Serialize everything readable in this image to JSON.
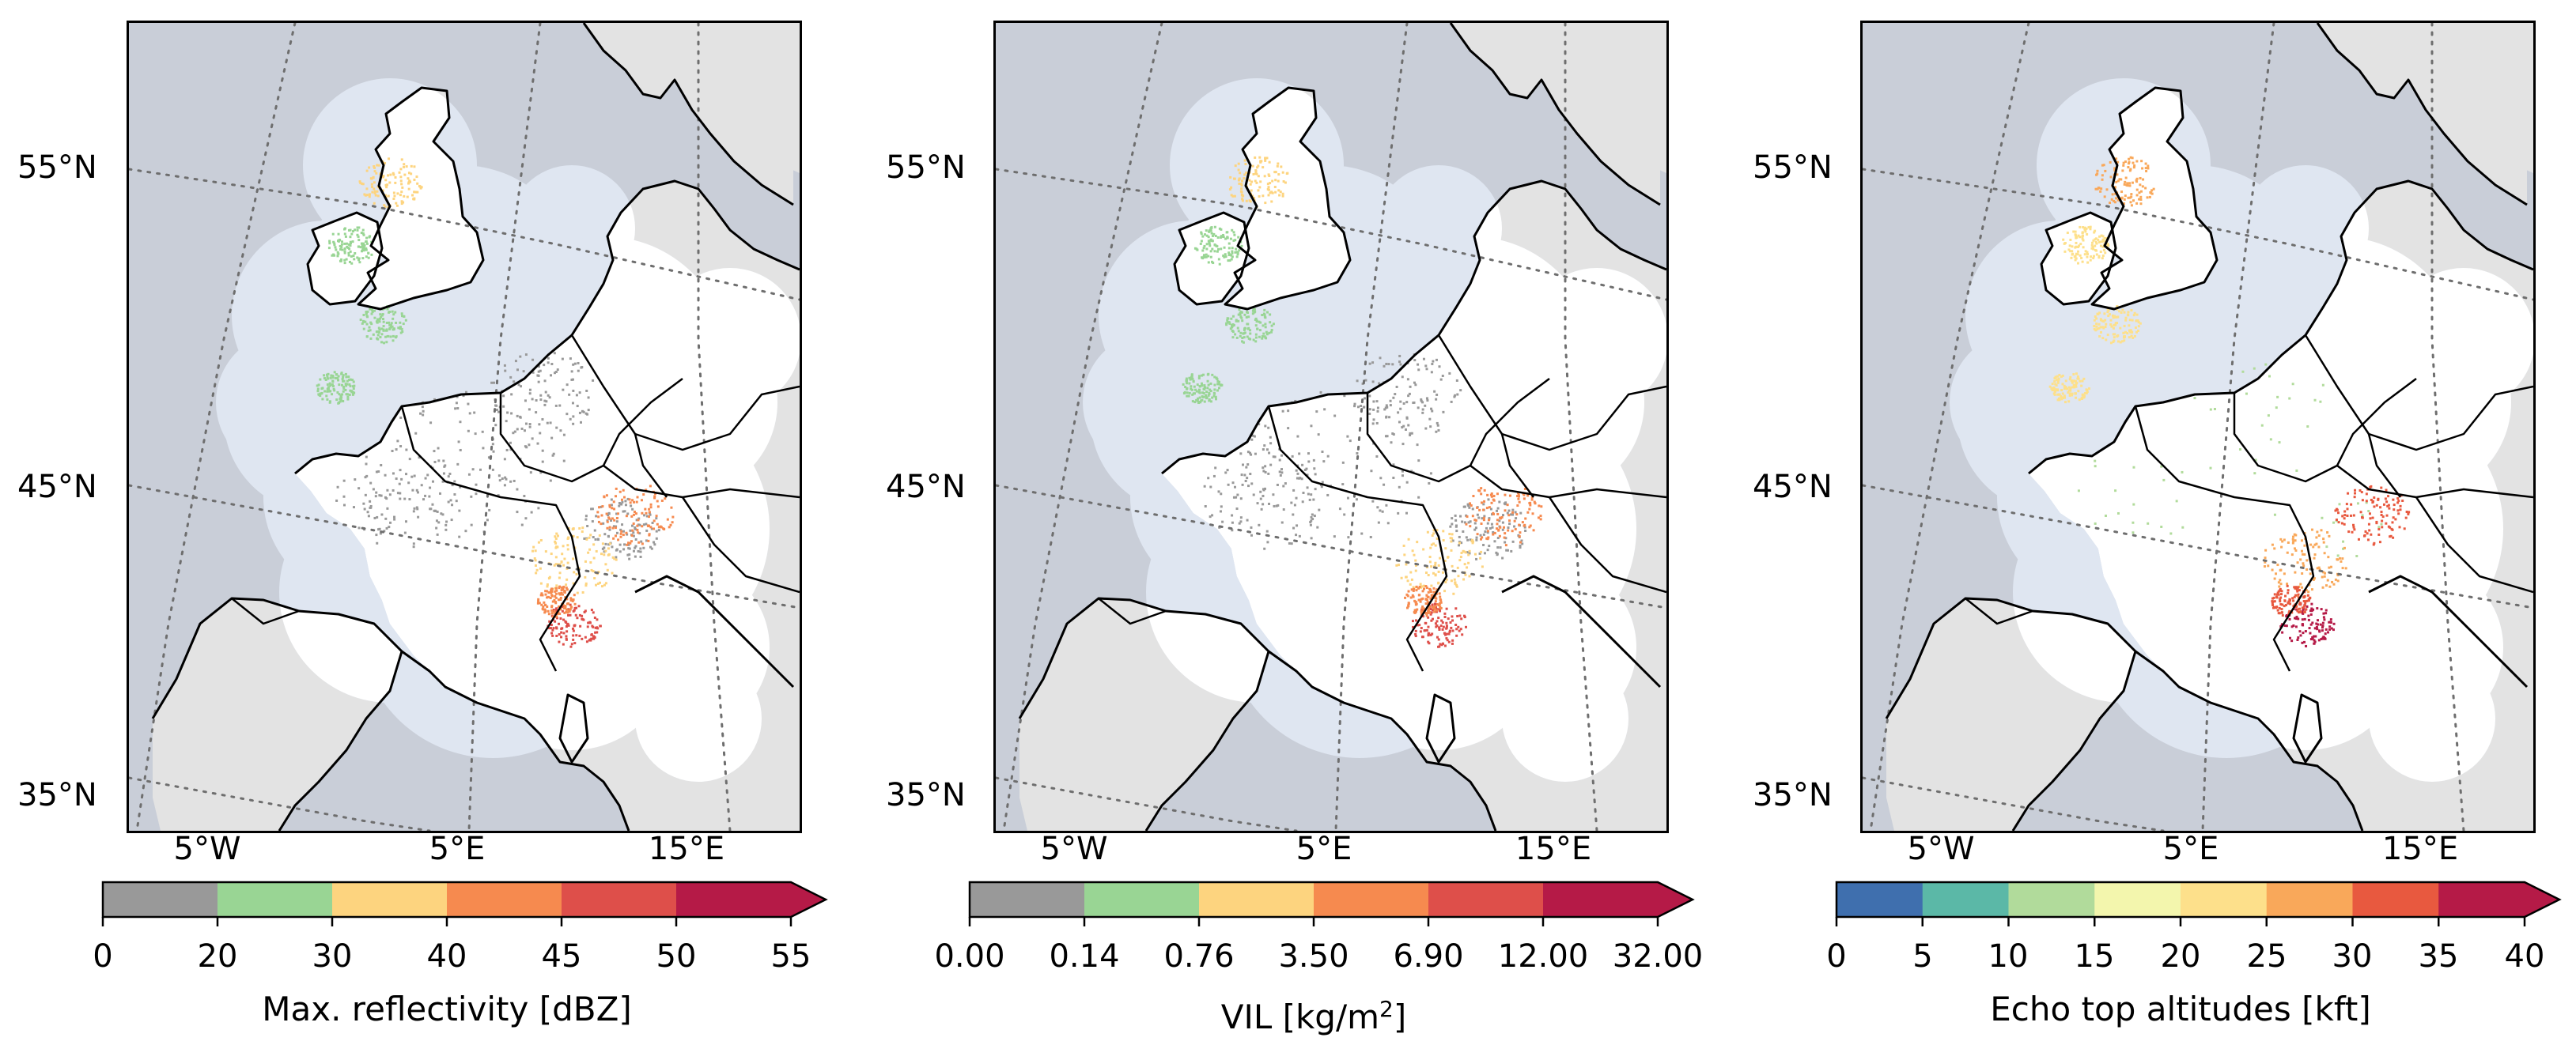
{
  "panels": [
    {
      "lat_labels": [
        "55°N",
        "45°N",
        "35°N"
      ],
      "lon_labels": [
        "5°W",
        "5°E",
        "15°E"
      ],
      "colorbar": {
        "label": "Max. reflectivity [dBZ]",
        "ticks": [
          "0",
          "20",
          "30",
          "40",
          "45",
          "50",
          "55"
        ],
        "colors": [
          "#999999",
          "#99d594",
          "#fdd47f",
          "#f68a4f",
          "#de4f4a",
          "#b51a47"
        ],
        "extend_color": "#b51a47"
      }
    },
    {
      "lat_labels": [
        "55°N",
        "45°N",
        "35°N"
      ],
      "lon_labels": [
        "5°W",
        "5°E",
        "15°E"
      ],
      "colorbar": {
        "label": "VIL [kg/m",
        "label_sup": "2",
        "label_end": "]",
        "ticks": [
          "0.00",
          "0.14",
          "0.76",
          "3.50",
          "6.90",
          "12.00",
          "32.00"
        ],
        "colors": [
          "#999999",
          "#99d594",
          "#fdd47f",
          "#f68a4f",
          "#de4f4a",
          "#b51a47"
        ],
        "extend_color": "#b51a47"
      }
    },
    {
      "lat_labels": [
        "55°N",
        "45°N",
        "35°N"
      ],
      "lon_labels": [
        "5°W",
        "5°E",
        "15°E"
      ],
      "colorbar": {
        "label": "Echo top altitudes [kft]",
        "ticks": [
          "0",
          "5",
          "10",
          "15",
          "20",
          "25",
          "30",
          "35",
          "40"
        ],
        "colors": [
          "#3f6fae",
          "#5bb8a7",
          "#b1db9b",
          "#f3f6ad",
          "#fde08b",
          "#f9a85a",
          "#e8593f",
          "#b51a47"
        ],
        "extend_color": "#b51a47"
      }
    }
  ],
  "colors": {
    "ocean": "#c9ced8",
    "land": "#e3e3e3",
    "radar_coverage": "#dfe6f1",
    "radar_land": "#ffffff",
    "coastline": "#000000",
    "gridline": "#6e6e6e"
  }
}
